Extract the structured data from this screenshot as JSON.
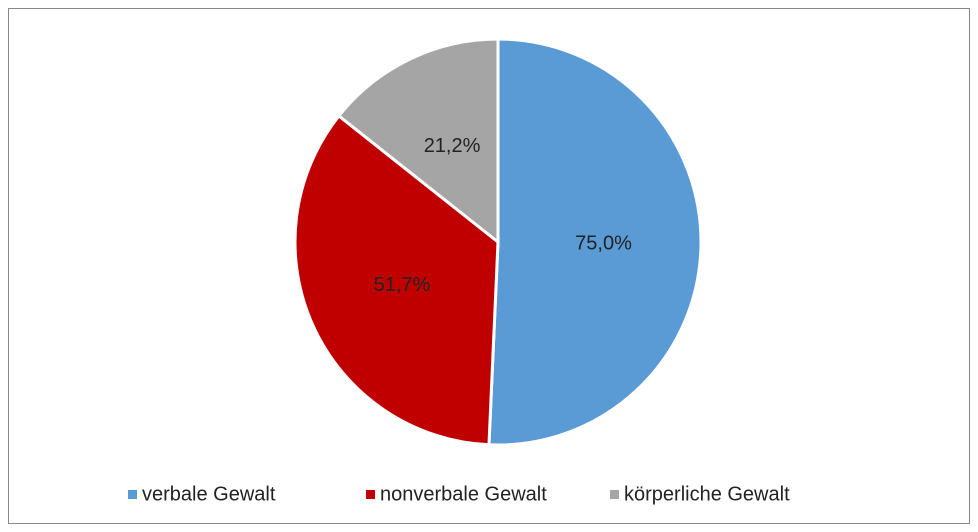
{
  "chart_data": {
    "type": "pie",
    "categories": [
      "verbale Gewalt",
      "nonverbale Gewalt",
      "körperliche Gewalt"
    ],
    "values": [
      75.0,
      51.7,
      21.2
    ],
    "value_labels": [
      "75,0%",
      "51,7%",
      "21,2%"
    ],
    "colors": [
      "#5b9bd5",
      "#c00000",
      "#a5a5a5"
    ],
    "legend": "bottom"
  }
}
